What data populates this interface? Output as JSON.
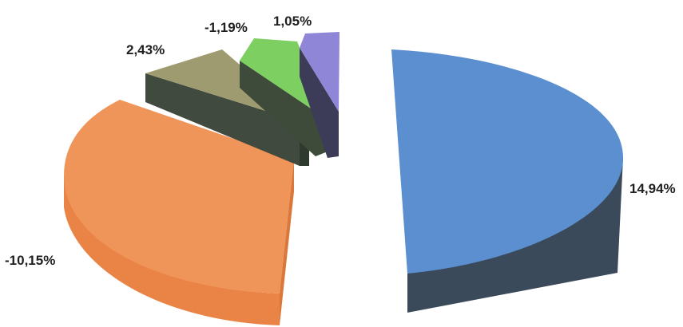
{
  "chart_data": {
    "type": "pie",
    "style": "3d-exploded",
    "slices": [
      {
        "label": "14,94%",
        "value": 14.94,
        "color": "#5b8fd0",
        "side_color": "#3a4a5a"
      },
      {
        "label": "-10,15%",
        "value": -10.15,
        "color": "#f0955a",
        "side_color": "#ea8446"
      },
      {
        "label": "2,43%",
        "value": 2.43,
        "color": "#9f9b70",
        "side_color": "#404a3e"
      },
      {
        "label": "-1,19%",
        "value": -1.19,
        "color": "#7ccf60",
        "side_color": "#3e4a3a"
      },
      {
        "label": "1,05%",
        "value": 1.05,
        "color": "#8f86d8",
        "side_color": "#3c3c58"
      }
    ]
  }
}
